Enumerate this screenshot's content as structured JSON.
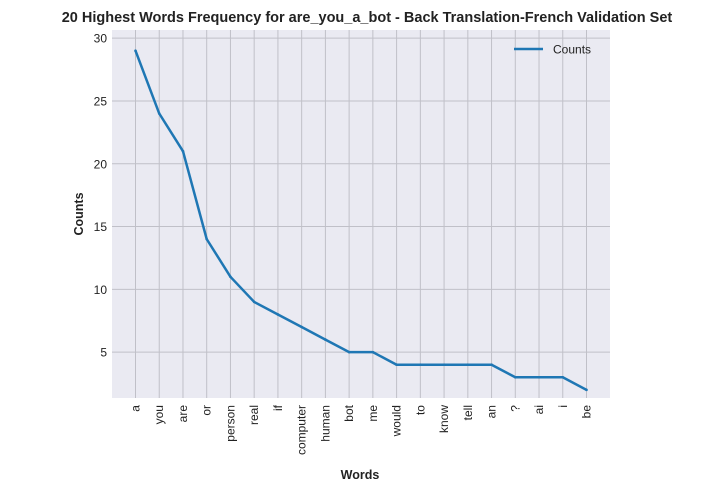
{
  "chart_data": {
    "type": "line",
    "title": "20 Highest Words Frequency for are_you_a_bot - Back Translation-French Validation Set",
    "xlabel": "Words",
    "ylabel": "Counts",
    "categories": [
      "a",
      "you",
      "are",
      "or",
      "person",
      "real",
      "if",
      "computer",
      "human",
      "bot",
      "me",
      "would",
      "to",
      "know",
      "tell",
      "an",
      "?",
      "ai",
      "i",
      "be"
    ],
    "series": [
      {
        "name": "Counts",
        "values": [
          29,
          24,
          21,
          14,
          11,
          9,
          8,
          7,
          6,
          5,
          5,
          4,
          4,
          4,
          4,
          4,
          3,
          3,
          3,
          2
        ],
        "color": "#1f77b4"
      }
    ],
    "ylim": [
      1.35,
      30.65
    ],
    "yticks": [
      5,
      10,
      15,
      20,
      25,
      30
    ],
    "grid": true,
    "legend_position": "top-right",
    "plot_background": "#eaeaf2",
    "grid_color": "#c0c0c8"
  }
}
